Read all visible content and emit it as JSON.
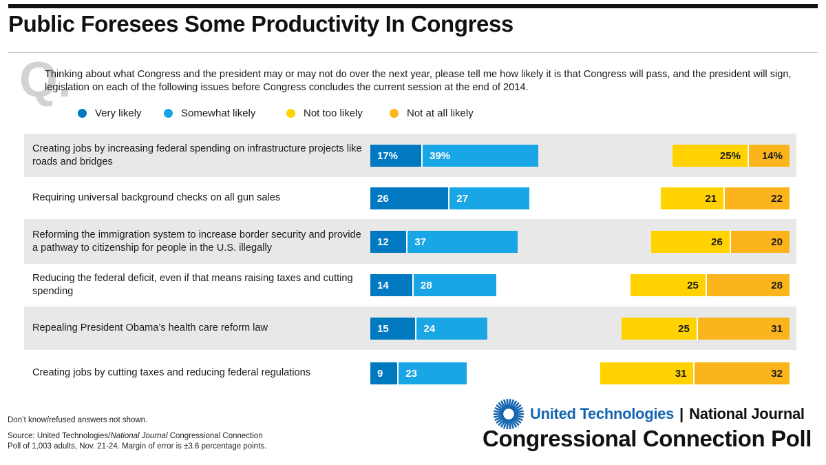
{
  "header": {
    "title": "Public Foresees Some Productivity In Congress",
    "q_mark": "Q.",
    "question": "Thinking about what Congress and the president may or may not do over the next year, please tell me how likely it is that Congress will pass, and the president will sign, legislation on each of the following issues before Congress concludes the current session at the end of 2014."
  },
  "colors": {
    "very_likely": "#0079c1",
    "somewhat_likely": "#19a6e6",
    "not_too_likely": "#ffd200",
    "not_at_all_likely": "#fbb41b",
    "row_background": "#e8e8e8",
    "brand_blue": "#1565b0"
  },
  "chart_data": {
    "type": "bar",
    "orientation": "horizontal-diverging",
    "categories": [
      "Creating jobs by increasing federal spending on infrastructure projects like roads and bridges",
      "Requiring universal background checks on all gun sales",
      "Reforming the immigration system to increase border security and provide a pathway to citizenship for people in the U.S. illegally",
      "Reducing the federal deficit, even if that means raising taxes and cutting spending",
      "Repealing President Obama’s health care reform law",
      "Creating jobs by cutting taxes and reducing federal regulations"
    ],
    "series": [
      {
        "name": "Very likely",
        "values": [
          17,
          26,
          12,
          14,
          15,
          9
        ],
        "labels": [
          "17%",
          "26",
          "12",
          "14",
          "15",
          "9"
        ]
      },
      {
        "name": "Somewhat likely",
        "values": [
          39,
          27,
          37,
          28,
          24,
          23
        ],
        "labels": [
          "39%",
          "27",
          "37",
          "28",
          "24",
          "23"
        ]
      },
      {
        "name": "Not too likely",
        "values": [
          25,
          21,
          26,
          25,
          25,
          31
        ],
        "labels": [
          "25%",
          "21",
          "26",
          "25",
          "25",
          "31"
        ]
      },
      {
        "name": "Not at all likely",
        "values": [
          14,
          22,
          20,
          28,
          31,
          32
        ],
        "labels": [
          "14%",
          "22",
          "20",
          "28",
          "31",
          "32"
        ]
      }
    ],
    "legend_position": "top"
  },
  "footer": {
    "note": "Don’t know/refused answers not shown.",
    "source_prefix": "Source: United Technologies/",
    "source_italic": "National Journal",
    "source_suffix": " Congressional Connection",
    "source_line2": "Poll of 1,003 adults, Nov. 21-24. Margin of error is ±3.6 percentage points.",
    "brand_ut": "United Technologies",
    "brand_sep": "|",
    "brand_nj": "National Journal",
    "poll_name": "Congressional Connection Poll"
  }
}
